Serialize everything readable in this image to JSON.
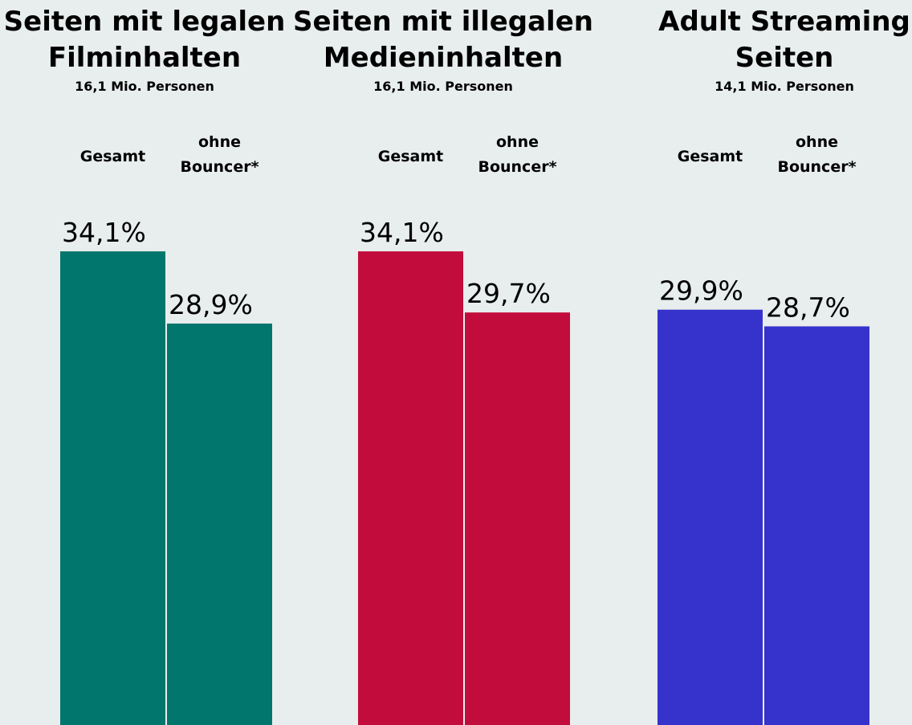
{
  "chart_data": [
    {
      "type": "bar",
      "title": "Seiten mit legalen Filminhalten",
      "title_lines": [
        "Seiten mit legalen",
        "Filminhalten"
      ],
      "subtitle": "16,1 Mio. Personen",
      "categories": [
        "Gesamt",
        "ohne Bouncer*"
      ],
      "category_lines": [
        [
          "Gesamt"
        ],
        [
          "ohne",
          "Bouncer*"
        ]
      ],
      "values": [
        34.1,
        28.9
      ],
      "value_labels": [
        "34,1%",
        "28,9%"
      ],
      "unit": "%",
      "color": "#00766c",
      "ylim": [
        0,
        45
      ],
      "grid": false,
      "legend": "none"
    },
    {
      "type": "bar",
      "title": "Seiten mit illegalen Medieninhalten",
      "title_lines": [
        "Seiten mit illegalen",
        "Medieninhalten"
      ],
      "subtitle": "16,1 Mio. Personen",
      "categories": [
        "Gesamt",
        "ohne Bouncer*"
      ],
      "category_lines": [
        [
          "Gesamt"
        ],
        [
          "ohne",
          "Bouncer*"
        ]
      ],
      "values": [
        34.1,
        29.7
      ],
      "value_labels": [
        "34,1%",
        "29,7%"
      ],
      "unit": "%",
      "color": "#c20c3c",
      "ylim": [
        0,
        45
      ],
      "grid": false,
      "legend": "none"
    },
    {
      "type": "bar",
      "title": "Adult Streaming Seiten",
      "title_lines": [
        "Adult Streaming",
        "Seiten"
      ],
      "subtitle": "14,1 Mio. Personen",
      "categories": [
        "Gesamt",
        "ohne Bouncer*"
      ],
      "category_lines": [
        [
          "Gesamt"
        ],
        [
          "ohne",
          "Bouncer*"
        ]
      ],
      "values": [
        29.9,
        28.7
      ],
      "value_labels": [
        "29,9%",
        "28,7%"
      ],
      "unit": "%",
      "color": "#3533cc",
      "ylim": [
        0,
        45
      ],
      "grid": false,
      "legend": "none"
    }
  ]
}
